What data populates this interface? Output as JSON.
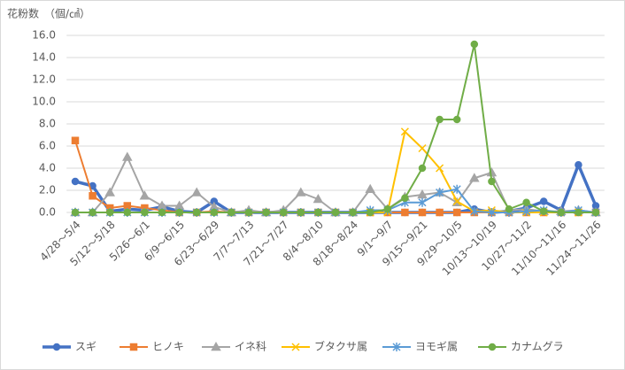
{
  "chart_data": {
    "type": "line",
    "title": "花粉数　（個/㎠）",
    "categories": [
      "4/28～5/4",
      null,
      "5/12～5/18",
      null,
      "5/26～6/1",
      null,
      "6/9～6/15",
      null,
      "6/23～6/29",
      null,
      "7/7～7/13",
      null,
      "7/21～7/27",
      null,
      "8/4～8/10",
      null,
      "8/18～8/24",
      null,
      "9/1～9/7",
      null,
      "9/15～9/21",
      null,
      "9/29～10/5",
      null,
      "10/13～10/19",
      null,
      "10/27～11/2",
      null,
      "11/10～11/16",
      null,
      "11/24～11/26"
    ],
    "series": [
      {
        "name": "スギ",
        "color": "#4472c4",
        "marker": "circle",
        "line_width": 3.5,
        "values": [
          2.8,
          2.4,
          0.1,
          0.3,
          0.2,
          0.5,
          0.1,
          0,
          1.0,
          0,
          0,
          0,
          0,
          0,
          0,
          0,
          0,
          0,
          0,
          0,
          0,
          0,
          0,
          0.3,
          0,
          0.1,
          0.4,
          1.0,
          0.2,
          4.3,
          0.6
        ]
      },
      {
        "name": "ヒノキ",
        "color": "#ed7d31",
        "marker": "square",
        "line_width": 2,
        "values": [
          6.5,
          1.5,
          0.4,
          0.6,
          0.4,
          0.2,
          0,
          0,
          0.1,
          0,
          0,
          0,
          0,
          0,
          0,
          0,
          0,
          0,
          0,
          0,
          0,
          0,
          0,
          0,
          0,
          0,
          0,
          0,
          0,
          0,
          0
        ]
      },
      {
        "name": "イネ科",
        "color": "#a5a5a5",
        "marker": "triangle",
        "line_width": 2,
        "values": [
          0,
          0,
          1.8,
          5.0,
          1.5,
          0.6,
          0.6,
          1.8,
          0.5,
          0,
          0.2,
          0,
          0.2,
          1.8,
          1.2,
          0,
          0,
          2.1,
          0.3,
          1.4,
          1.6,
          1.8,
          0.9,
          3.1,
          3.6,
          0.2,
          0.3,
          0.1,
          0.1,
          0.2,
          0
        ]
      },
      {
        "name": "ブタクサ属",
        "color": "#ffc000",
        "marker": "x",
        "line_width": 2,
        "values": [
          0,
          0,
          0,
          0,
          0,
          0,
          0,
          0,
          0,
          0,
          0,
          0,
          0,
          0,
          0,
          0,
          0,
          0,
          0,
          7.3,
          5.8,
          4.0,
          1.0,
          0.1,
          0.2,
          0,
          0,
          0,
          0,
          0,
          0
        ]
      },
      {
        "name": "ヨモギ属",
        "color": "#5b9bd5",
        "marker": "star",
        "line_width": 2,
        "values": [
          0,
          0,
          0,
          0,
          0,
          0,
          0,
          0,
          0,
          0,
          0,
          0,
          0,
          0,
          0,
          0,
          0,
          0.2,
          0.2,
          0.9,
          0.9,
          1.8,
          2.1,
          0.1,
          0,
          0,
          0.1,
          0.2,
          0,
          0.2,
          0
        ]
      },
      {
        "name": "カナムグラ",
        "color": "#70ad47",
        "marker": "circle",
        "line_width": 2,
        "values": [
          0,
          0,
          0,
          0,
          0,
          0,
          0,
          0,
          0,
          0,
          0,
          0,
          0,
          0,
          0,
          0,
          0,
          0,
          0.3,
          1.3,
          4.0,
          8.4,
          8.4,
          15.2,
          2.8,
          0.3,
          0.9,
          0.1,
          0,
          0,
          0
        ]
      }
    ],
    "ylim": [
      0,
      16
    ],
    "yticks": [
      {
        "value": 0,
        "label": "0.0"
      },
      {
        "value": 2,
        "label": "2.0"
      },
      {
        "value": 4,
        "label": "4.0"
      },
      {
        "value": 6,
        "label": "6.0"
      },
      {
        "value": 8,
        "label": "8.0"
      },
      {
        "value": 10,
        "label": "10.0"
      },
      {
        "value": 12,
        "label": "12.0"
      },
      {
        "value": 14,
        "label": "14.0"
      },
      {
        "value": 16,
        "label": "16.0"
      }
    ],
    "grid": true,
    "legend": "bottom"
  }
}
